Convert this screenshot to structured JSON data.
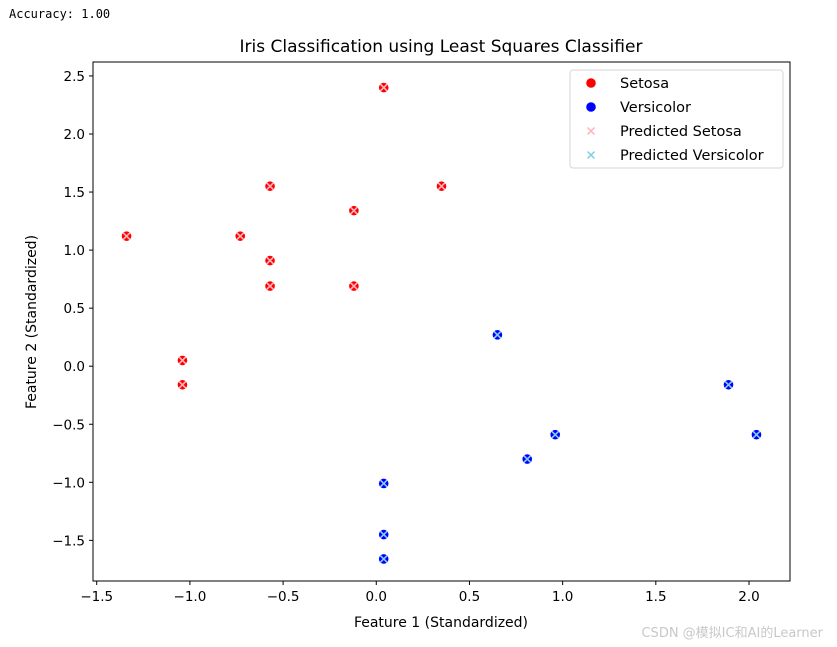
{
  "output": {
    "accuracy_text": "Accuracy: 1.00"
  },
  "watermark": "CSDN @模拟IC和AI的Learner",
  "chart_data": {
    "type": "scatter",
    "title": "Iris Classification using Least Squares Classifier",
    "xlabel": "Feature 1 (Standardized)",
    "ylabel": "Feature 2 (Standardized)",
    "xlim": [
      -1.52,
      2.22
    ],
    "ylim": [
      -1.85,
      2.62
    ],
    "xticks": [
      -1.5,
      -1.0,
      -0.5,
      0.0,
      0.5,
      1.0,
      1.5,
      2.0
    ],
    "xtick_labels": [
      "−1.5",
      "−1.0",
      "−0.5",
      "0.0",
      "0.5",
      "1.0",
      "1.5",
      "2.0"
    ],
    "yticks": [
      -1.5,
      -1.0,
      -0.5,
      0.0,
      0.5,
      1.0,
      1.5,
      2.0,
      2.5
    ],
    "ytick_labels": [
      "−1.5",
      "−1.0",
      "−0.5",
      "0.0",
      "0.5",
      "1.0",
      "1.5",
      "2.0",
      "2.5"
    ],
    "grid": false,
    "legend_position": "top-right",
    "series": [
      {
        "name": "Setosa",
        "marker": "circle",
        "color": "#ff0000",
        "points": [
          [
            0.04,
            2.4
          ],
          [
            -0.57,
            1.55
          ],
          [
            0.35,
            1.55
          ],
          [
            -0.12,
            1.34
          ],
          [
            -1.34,
            1.12
          ],
          [
            -0.73,
            1.12
          ],
          [
            -0.57,
            0.91
          ],
          [
            -0.57,
            0.69
          ],
          [
            -0.12,
            0.69
          ],
          [
            -1.04,
            0.05
          ],
          [
            -1.04,
            -0.16
          ]
        ]
      },
      {
        "name": "Versicolor",
        "marker": "circle",
        "color": "#0000ff",
        "points": [
          [
            0.65,
            0.27
          ],
          [
            1.89,
            -0.16
          ],
          [
            0.96,
            -0.59
          ],
          [
            2.04,
            -0.59
          ],
          [
            0.81,
            -0.8
          ],
          [
            0.04,
            -1.01
          ],
          [
            0.04,
            -1.45
          ],
          [
            0.04,
            -1.66
          ]
        ]
      },
      {
        "name": "Predicted Setosa",
        "marker": "x",
        "color": "#ffb6c1",
        "points": [
          [
            0.04,
            2.4
          ],
          [
            -0.57,
            1.55
          ],
          [
            0.35,
            1.55
          ],
          [
            -0.12,
            1.34
          ],
          [
            -1.34,
            1.12
          ],
          [
            -0.73,
            1.12
          ],
          [
            -0.57,
            0.91
          ],
          [
            -0.57,
            0.69
          ],
          [
            -0.12,
            0.69
          ],
          [
            -1.04,
            0.05
          ],
          [
            -1.04,
            -0.16
          ]
        ]
      },
      {
        "name": "Predicted Versicolor",
        "marker": "x",
        "color": "#87ceeb",
        "points": [
          [
            0.65,
            0.27
          ],
          [
            1.89,
            -0.16
          ],
          [
            0.96,
            -0.59
          ],
          [
            2.04,
            -0.59
          ],
          [
            0.81,
            -0.8
          ],
          [
            0.04,
            -1.01
          ],
          [
            0.04,
            -1.45
          ],
          [
            0.04,
            -1.66
          ]
        ]
      }
    ]
  }
}
